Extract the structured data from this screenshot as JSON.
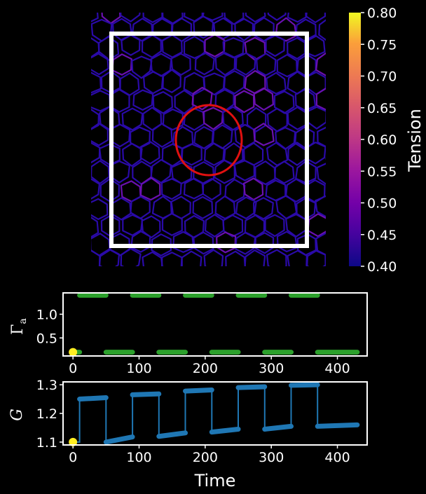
{
  "chart_data": [
    {
      "type": "heatmap",
      "colorbar": {
        "label": "Tension",
        "range": [
          0.4,
          0.8
        ],
        "ticks": [
          "0.40",
          "0.45",
          "0.50",
          "0.55",
          "0.60",
          "0.65",
          "0.70",
          "0.75",
          "0.80"
        ],
        "colormap": "plasma"
      },
      "overlays": {
        "square_color": "#ffffff",
        "ellipse_color": "#e01010"
      },
      "colors": {
        "edge_low": "#2a0aa8",
        "edge_mid": "#6a10b0"
      }
    },
    {
      "type": "line",
      "ylabel": "Γ_a",
      "ylabel_display": [
        "Γ",
        "a"
      ],
      "yticks": [
        "0.5",
        "1.0"
      ],
      "xticks": [
        "0",
        "100",
        "200",
        "300",
        "400"
      ],
      "ylim": [
        0.12,
        1.45
      ],
      "xlim": [
        -15,
        445
      ],
      "color": "#2ca02c",
      "marker_start": {
        "x": 0,
        "y": 0.2,
        "color": "#ffee22"
      },
      "segments": [
        {
          "x": [
            10,
            50
          ],
          "y": [
            1.4,
            1.4
          ]
        },
        {
          "x": [
            50,
            90
          ],
          "y": [
            0.2,
            0.2
          ]
        },
        {
          "x": [
            90,
            130
          ],
          "y": [
            1.4,
            1.4
          ]
        },
        {
          "x": [
            130,
            170
          ],
          "y": [
            0.2,
            0.2
          ]
        },
        {
          "x": [
            170,
            210
          ],
          "y": [
            1.4,
            1.4
          ]
        },
        {
          "x": [
            210,
            250
          ],
          "y": [
            0.2,
            0.2
          ]
        },
        {
          "x": [
            250,
            290
          ],
          "y": [
            1.4,
            1.4
          ]
        },
        {
          "x": [
            290,
            330
          ],
          "y": [
            0.2,
            0.2
          ]
        },
        {
          "x": [
            330,
            370
          ],
          "y": [
            1.4,
            1.4
          ]
        },
        {
          "x": [
            370,
            430
          ],
          "y": [
            0.2,
            0.2
          ]
        },
        {
          "x": [
            0,
            10
          ],
          "y": [
            0.2,
            0.2
          ]
        }
      ]
    },
    {
      "type": "line",
      "ylabel": "G",
      "yticks": [
        "1.1",
        "1.2",
        "1.3"
      ],
      "xticks": [
        "0",
        "100",
        "200",
        "300",
        "400"
      ],
      "xlabel": "Time",
      "ylim": [
        1.09,
        1.31
      ],
      "xlim": [
        -15,
        445
      ],
      "color": "#1f77b4",
      "marker_start": {
        "x": 0,
        "y": 1.1,
        "color": "#ffee22"
      },
      "segments": [
        {
          "x": [
            0,
            10,
            10,
            50
          ],
          "y": [
            1.1,
            1.1,
            1.25,
            1.255
          ]
        },
        {
          "x": [
            50,
            50,
            90
          ],
          "y": [
            1.255,
            1.1,
            1.118
          ]
        },
        {
          "x": [
            90,
            90,
            130
          ],
          "y": [
            1.118,
            1.265,
            1.268
          ]
        },
        {
          "x": [
            130,
            130,
            170
          ],
          "y": [
            1.268,
            1.12,
            1.132
          ]
        },
        {
          "x": [
            170,
            170,
            210
          ],
          "y": [
            1.132,
            1.278,
            1.282
          ]
        },
        {
          "x": [
            210,
            210,
            250
          ],
          "y": [
            1.282,
            1.135,
            1.145
          ]
        },
        {
          "x": [
            250,
            250,
            290
          ],
          "y": [
            1.145,
            1.29,
            1.293
          ]
        },
        {
          "x": [
            290,
            290,
            330
          ],
          "y": [
            1.293,
            1.145,
            1.155
          ]
        },
        {
          "x": [
            330,
            330,
            370
          ],
          "y": [
            1.155,
            1.298,
            1.3
          ]
        },
        {
          "x": [
            370,
            370,
            430
          ],
          "y": [
            1.3,
            1.155,
            1.16
          ]
        }
      ]
    }
  ]
}
